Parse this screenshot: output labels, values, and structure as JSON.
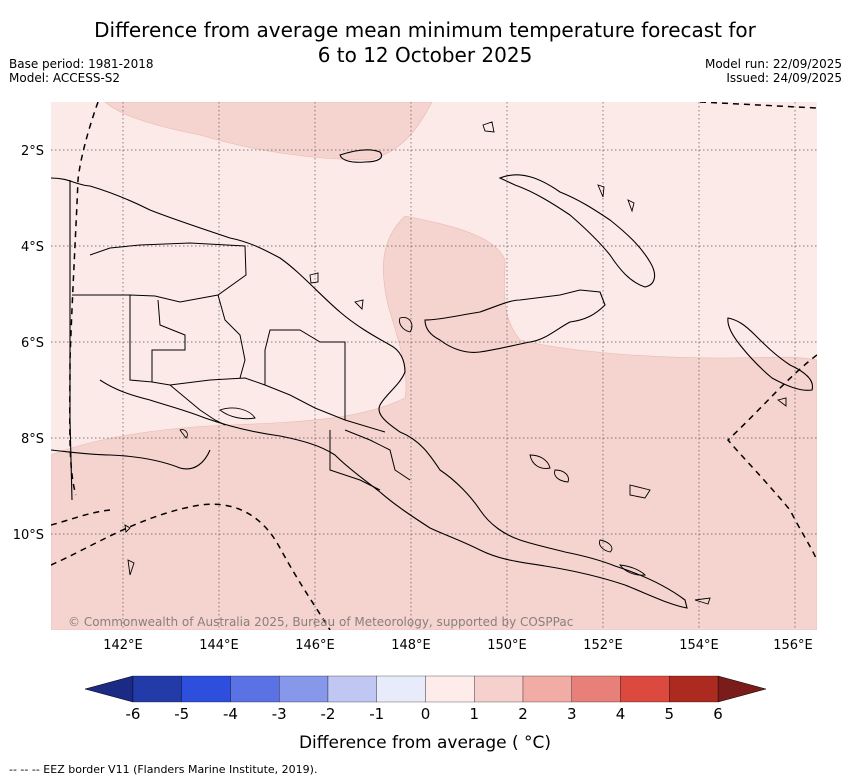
{
  "title": {
    "line1": "Difference from average mean minimum temperature forecast for",
    "line2": "6 to 12 October 2025"
  },
  "meta": {
    "base_period": "Base period: 1981-2018",
    "model": "Model: ACCESS-S2",
    "model_run": "Model run: 22/09/2025",
    "issued": "Issued: 24/09/2025"
  },
  "map": {
    "region": "Papua New Guinea",
    "lat_labels": [
      "2°S",
      "4°S",
      "6°S",
      "8°S",
      "10°S"
    ],
    "lon_labels": [
      "142°E",
      "144°E",
      "146°E",
      "148°E",
      "150°E",
      "152°E",
      "154°E",
      "156°E"
    ],
    "copyright": "© Commonwealth of Australia 2025, Bureau of Meteorology, supported by COSPPac",
    "colors": {
      "anomaly_0_1": "#fceae8",
      "anomaly_1_2": "#f5d3cf",
      "coastline": "#000000",
      "gridline": "#555555",
      "eez_border": "#000000"
    }
  },
  "colorbar": {
    "ticks": [
      "-6",
      "-5",
      "-4",
      "-3",
      "-2",
      "-1",
      "0",
      "1",
      "2",
      "3",
      "4",
      "5",
      "6"
    ],
    "colors": [
      "#233ba8",
      "#2e4fde",
      "#5a72e4",
      "#8797ea",
      "#c0c7f2",
      "#e8ebf9",
      "#fdecea",
      "#f5d0cc",
      "#f1aca5",
      "#e8807a",
      "#dc4a3f",
      "#ad2a21"
    ],
    "under_color": "#1b2a85",
    "over_color": "#7a1d1a",
    "label": "Difference from average ( °C)"
  },
  "footnote": "--  --  -- EEZ border V11 (Flanders Marine Institute, 2019)."
}
